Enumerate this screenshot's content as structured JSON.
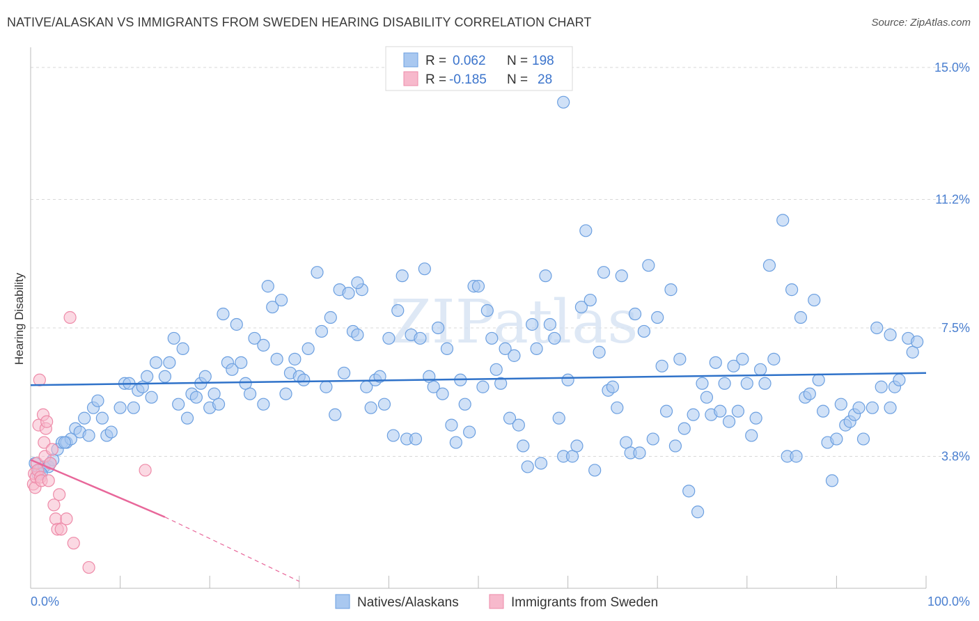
{
  "title": "NATIVE/ALASKAN VS IMMIGRANTS FROM SWEDEN HEARING DISABILITY CORRELATION CHART",
  "source": "Source: ZipAtlas.com",
  "watermark": "ZIPatlas",
  "colors": {
    "blue_fill": "#a9c8f0",
    "blue_stroke": "#6b9fe0",
    "blue_line": "#2f72c9",
    "pink_fill": "#f7b9cc",
    "pink_stroke": "#ee8aa8",
    "pink_line": "#e8679a",
    "tick_text": "#4a7fd0",
    "grid": "#d8d8d8"
  },
  "legend_top": {
    "rows": [
      {
        "r_label": "R =",
        "r_value": "0.062",
        "n_label": "N =",
        "n_value": "198"
      },
      {
        "r_label": "R =",
        "r_value": "-0.185",
        "n_label": "N =",
        "n_value": "28"
      }
    ]
  },
  "legend_bottom": [
    {
      "label": "Natives/Alaskans"
    },
    {
      "label": "Immigrants from Sweden"
    }
  ],
  "chart_data": {
    "type": "scatter",
    "title": "NATIVE/ALASKAN VS IMMIGRANTS FROM SWEDEN HEARING DISABILITY CORRELATION CHART",
    "xlabel": "",
    "ylabel": "Hearing Disability",
    "xlim": [
      0,
      100
    ],
    "ylim": [
      0,
      15.5
    ],
    "x_tick_labels": [
      "0.0%",
      "100.0%"
    ],
    "y_ticks": [
      3.8,
      7.5,
      11.2,
      15.0
    ],
    "y_tick_labels": [
      "3.8%",
      "7.5%",
      "11.2%",
      "15.0%"
    ],
    "grid": true,
    "legend_position": "top-center",
    "series": [
      {
        "name": "Natives/Alaskans",
        "color": "#a9c8f0",
        "trend": {
          "x0": 0,
          "y0": 5.85,
          "x1": 100,
          "y1": 6.2
        },
        "points": [
          [
            0.5,
            3.6
          ],
          [
            0.8,
            3.3
          ],
          [
            1.0,
            3.4
          ],
          [
            1.5,
            3.5
          ],
          [
            2.0,
            3.5
          ],
          [
            2.5,
            3.7
          ],
          [
            3.0,
            4.0
          ],
          [
            3.5,
            4.2
          ],
          [
            4.0,
            4.2
          ],
          [
            4.5,
            4.3
          ],
          [
            5.0,
            4.6
          ],
          [
            5.5,
            4.5
          ],
          [
            6.0,
            4.9
          ],
          [
            6.5,
            4.4
          ],
          [
            7.0,
            5.2
          ],
          [
            7.5,
            5.4
          ],
          [
            8.0,
            4.9
          ],
          [
            8.5,
            4.4
          ],
          [
            9.0,
            4.5
          ],
          [
            10.0,
            5.2
          ],
          [
            10.5,
            5.9
          ],
          [
            11.0,
            5.9
          ],
          [
            11.5,
            5.2
          ],
          [
            12.0,
            5.7
          ],
          [
            13.0,
            6.1
          ],
          [
            13.5,
            5.5
          ],
          [
            14.0,
            6.5
          ],
          [
            15.0,
            6.1
          ],
          [
            15.5,
            6.5
          ],
          [
            16.0,
            7.2
          ],
          [
            16.5,
            5.3
          ],
          [
            17.0,
            6.9
          ],
          [
            17.5,
            4.9
          ],
          [
            18.0,
            5.6
          ],
          [
            18.5,
            5.5
          ],
          [
            19.0,
            5.9
          ],
          [
            19.5,
            6.1
          ],
          [
            20.0,
            5.2
          ],
          [
            20.5,
            5.6
          ],
          [
            21.0,
            5.3
          ],
          [
            21.5,
            7.9
          ],
          [
            22.0,
            6.5
          ],
          [
            22.5,
            6.3
          ],
          [
            23.0,
            7.6
          ],
          [
            23.5,
            6.5
          ],
          [
            24.0,
            5.9
          ],
          [
            24.5,
            5.6
          ],
          [
            25.0,
            7.2
          ],
          [
            26.0,
            7.0
          ],
          [
            26.5,
            8.7
          ],
          [
            27.0,
            8.1
          ],
          [
            27.5,
            6.6
          ],
          [
            28.0,
            8.3
          ],
          [
            28.5,
            5.6
          ],
          [
            29.0,
            6.2
          ],
          [
            29.5,
            6.6
          ],
          [
            30.0,
            6.1
          ],
          [
            30.5,
            6.0
          ],
          [
            31.0,
            6.9
          ],
          [
            32.0,
            9.1
          ],
          [
            32.5,
            7.4
          ],
          [
            33.0,
            5.8
          ],
          [
            33.5,
            7.8
          ],
          [
            34.0,
            5.0
          ],
          [
            34.5,
            8.6
          ],
          [
            35.0,
            6.2
          ],
          [
            35.5,
            8.5
          ],
          [
            36.0,
            7.4
          ],
          [
            36.5,
            7.3
          ],
          [
            37.0,
            8.6
          ],
          [
            37.5,
            5.8
          ],
          [
            38.0,
            5.2
          ],
          [
            38.5,
            6.0
          ],
          [
            39.0,
            6.1
          ],
          [
            39.5,
            5.3
          ],
          [
            40.0,
            7.2
          ],
          [
            40.5,
            4.4
          ],
          [
            41.0,
            8.0
          ],
          [
            41.5,
            9.0
          ],
          [
            42.0,
            4.3
          ],
          [
            42.5,
            7.3
          ],
          [
            43.0,
            4.3
          ],
          [
            43.5,
            7.2
          ],
          [
            44.0,
            9.2
          ],
          [
            44.5,
            6.1
          ],
          [
            45.0,
            5.8
          ],
          [
            45.5,
            7.5
          ],
          [
            46.0,
            5.6
          ],
          [
            46.5,
            6.9
          ],
          [
            47.0,
            4.7
          ],
          [
            47.5,
            4.2
          ],
          [
            48.0,
            6.0
          ],
          [
            48.5,
            5.3
          ],
          [
            49.0,
            4.5
          ],
          [
            49.5,
            8.7
          ],
          [
            50.0,
            8.7
          ],
          [
            50.5,
            5.8
          ],
          [
            51.0,
            8.0
          ],
          [
            51.5,
            7.2
          ],
          [
            52.0,
            6.3
          ],
          [
            52.5,
            5.9
          ],
          [
            53.0,
            6.9
          ],
          [
            53.5,
            4.9
          ],
          [
            54.0,
            6.7
          ],
          [
            54.5,
            4.7
          ],
          [
            55.0,
            4.1
          ],
          [
            55.5,
            3.5
          ],
          [
            56.0,
            7.6
          ],
          [
            56.5,
            6.9
          ],
          [
            57.0,
            3.6
          ],
          [
            57.5,
            9.0
          ],
          [
            58.0,
            7.6
          ],
          [
            58.5,
            7.2
          ],
          [
            59.0,
            4.9
          ],
          [
            59.5,
            3.8
          ],
          [
            60.0,
            6.0
          ],
          [
            60.5,
            3.8
          ],
          [
            61.0,
            4.1
          ],
          [
            61.5,
            8.1
          ],
          [
            62.0,
            10.3
          ],
          [
            62.5,
            8.3
          ],
          [
            63.0,
            3.4
          ],
          [
            63.5,
            6.8
          ],
          [
            64.0,
            9.1
          ],
          [
            64.5,
            5.7
          ],
          [
            65.0,
            5.8
          ],
          [
            65.5,
            5.2
          ],
          [
            66.0,
            9.0
          ],
          [
            66.5,
            4.2
          ],
          [
            67.0,
            3.9
          ],
          [
            67.5,
            7.9
          ],
          [
            68.0,
            3.9
          ],
          [
            68.5,
            7.4
          ],
          [
            69.0,
            9.3
          ],
          [
            69.5,
            4.3
          ],
          [
            70.0,
            7.8
          ],
          [
            70.5,
            6.4
          ],
          [
            71.0,
            5.1
          ],
          [
            71.5,
            8.6
          ],
          [
            72.0,
            4.1
          ],
          [
            72.5,
            6.6
          ],
          [
            73.0,
            4.6
          ],
          [
            73.5,
            2.8
          ],
          [
            74.0,
            5.0
          ],
          [
            74.5,
            2.2
          ],
          [
            75.0,
            5.9
          ],
          [
            75.5,
            5.5
          ],
          [
            76.0,
            5.0
          ],
          [
            76.5,
            6.5
          ],
          [
            77.0,
            5.1
          ],
          [
            77.5,
            5.9
          ],
          [
            78.0,
            4.8
          ],
          [
            78.5,
            6.4
          ],
          [
            79.0,
            5.1
          ],
          [
            79.5,
            6.6
          ],
          [
            80.0,
            5.9
          ],
          [
            80.5,
            4.4
          ],
          [
            81.0,
            4.9
          ],
          [
            81.5,
            6.3
          ],
          [
            82.0,
            5.9
          ],
          [
            82.5,
            9.3
          ],
          [
            83.0,
            6.6
          ],
          [
            84.0,
            10.6
          ],
          [
            84.5,
            3.8
          ],
          [
            85.0,
            8.6
          ],
          [
            85.5,
            3.8
          ],
          [
            86.0,
            7.8
          ],
          [
            86.5,
            5.5
          ],
          [
            87.0,
            5.6
          ],
          [
            87.5,
            8.3
          ],
          [
            88.0,
            6.0
          ],
          [
            88.5,
            5.1
          ],
          [
            89.0,
            4.2
          ],
          [
            89.5,
            3.1
          ],
          [
            90.0,
            4.3
          ],
          [
            90.5,
            5.3
          ],
          [
            91.0,
            4.7
          ],
          [
            91.5,
            4.8
          ],
          [
            92.0,
            5.0
          ],
          [
            92.5,
            5.2
          ],
          [
            93.0,
            4.3
          ],
          [
            94.0,
            5.2
          ],
          [
            94.5,
            7.5
          ],
          [
            95.0,
            5.8
          ],
          [
            96.0,
            5.2
          ],
          [
            96.5,
            5.8
          ],
          [
            97.0,
            6.0
          ],
          [
            98.0,
            7.2
          ],
          [
            98.5,
            6.8
          ],
          [
            99.0,
            7.1
          ],
          [
            1.2,
            3.3
          ],
          [
            2.2,
            3.6
          ],
          [
            3.8,
            4.2
          ],
          [
            12.5,
            5.8
          ],
          [
            26.0,
            5.3
          ],
          [
            36.5,
            8.8
          ],
          [
            59.5,
            14.0
          ],
          [
            96.0,
            7.3
          ]
        ]
      },
      {
        "name": "Immigrants from Sweden",
        "color": "#f7b9cc",
        "trend": {
          "x0": 0,
          "y0": 3.7,
          "x1": 15,
          "y1": 2.05,
          "dash_to_x": 30,
          "dash_to_y": 0.2
        },
        "points": [
          [
            0.3,
            3.0
          ],
          [
            0.4,
            3.3
          ],
          [
            0.5,
            2.9
          ],
          [
            0.6,
            3.2
          ],
          [
            0.7,
            3.6
          ],
          [
            0.8,
            3.4
          ],
          [
            0.9,
            4.7
          ],
          [
            1.0,
            6.0
          ],
          [
            1.1,
            3.2
          ],
          [
            1.2,
            3.1
          ],
          [
            1.4,
            5.0
          ],
          [
            1.5,
            4.2
          ],
          [
            1.6,
            3.8
          ],
          [
            1.7,
            4.6
          ],
          [
            1.8,
            4.8
          ],
          [
            2.0,
            3.1
          ],
          [
            2.2,
            3.6
          ],
          [
            2.4,
            4.0
          ],
          [
            2.6,
            2.4
          ],
          [
            2.8,
            2.0
          ],
          [
            3.0,
            1.7
          ],
          [
            3.2,
            2.7
          ],
          [
            3.4,
            1.7
          ],
          [
            4.0,
            2.0
          ],
          [
            4.4,
            7.8
          ],
          [
            4.8,
            1.3
          ],
          [
            6.5,
            0.6
          ],
          [
            12.8,
            3.4
          ]
        ]
      }
    ]
  }
}
